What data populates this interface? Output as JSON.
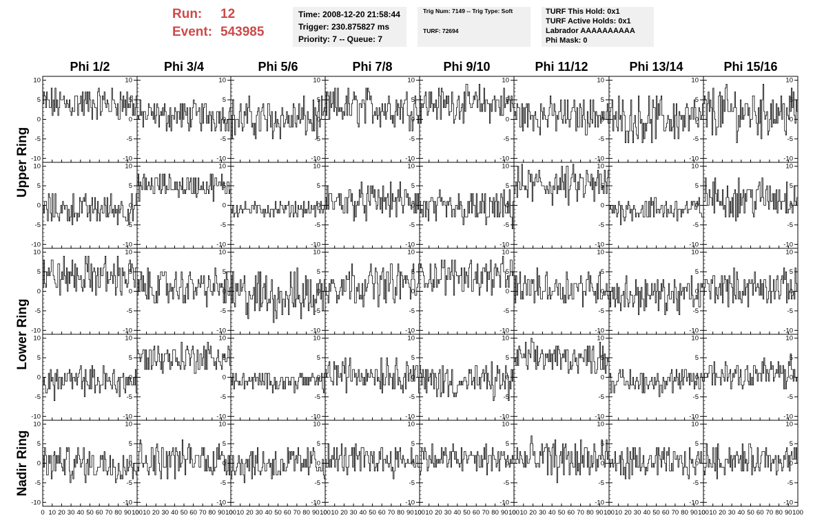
{
  "header": {
    "run_label": "Run:",
    "run_value": "12",
    "event_label": "Event:",
    "event_value": "543985"
  },
  "info_time": {
    "time": "Time: 2008-12-20 21:58:44",
    "trigger": "Trigger: 230.875827 ms",
    "priority": "Priority: 7 -- Queue: 7"
  },
  "info_trig": {
    "trig": "Trig Num: 7149 -- Trig Type: Soft",
    "turf": "TURF: 72694"
  },
  "info_turf": {
    "this_hold": "TURF This Hold: 0x1",
    "active_holds": "TURF Active Holds: 0x1",
    "labrador": "Labrador AAAAAAAAAA",
    "phi_mask": "Phi Mask: 0"
  },
  "colors": {
    "header_red": "#cc4a4a",
    "info_bg": "#f0f0f0",
    "trace": "#000000"
  },
  "chart_data": {
    "type": "line",
    "columns": [
      "Phi 1/2",
      "Phi 3/4",
      "Phi 5/6",
      "Phi 7/8",
      "Phi 9/10",
      "Phi 11/12",
      "Phi 13/14",
      "Phi 15/16"
    ],
    "row_groups": [
      "Upper Ring",
      "Lower Ring",
      "Nadir Ring"
    ],
    "rows_per_group": [
      2,
      2,
      1
    ],
    "xlim": [
      0,
      100
    ],
    "ylim": [
      -11,
      11
    ],
    "x_ticks": [
      0,
      10,
      20,
      30,
      40,
      50,
      60,
      70,
      80,
      90,
      100
    ],
    "y_ticks": [
      -10,
      -5,
      0,
      5,
      10
    ],
    "samples_per_trace": 100,
    "trace_levels": [
      [
        4,
        1,
        0,
        3,
        4,
        1,
        0,
        2
      ],
      [
        -1,
        5,
        -1,
        1,
        -1,
        5,
        -1,
        2
      ],
      [
        4,
        1,
        -1,
        2,
        4,
        1,
        -1,
        1
      ],
      [
        -1,
        5,
        -1,
        1,
        -1,
        5,
        -1,
        1
      ],
      [
        0,
        1,
        0,
        1,
        1,
        1,
        0,
        1
      ]
    ],
    "trace_spread": [
      [
        3.5,
        3,
        4,
        4,
        3.5,
        3.5,
        4.5,
        5
      ],
      [
        3,
        2.5,
        1.5,
        3.5,
        3.5,
        4,
        2.5,
        4
      ],
      [
        4,
        3.5,
        5,
        4,
        3.5,
        3.5,
        3.5,
        3.5
      ],
      [
        3,
        3,
        1.8,
        3.5,
        3.5,
        3,
        2.5,
        3.5
      ],
      [
        3.5,
        3.5,
        3.5,
        3,
        3,
        4,
        3,
        3
      ]
    ]
  }
}
